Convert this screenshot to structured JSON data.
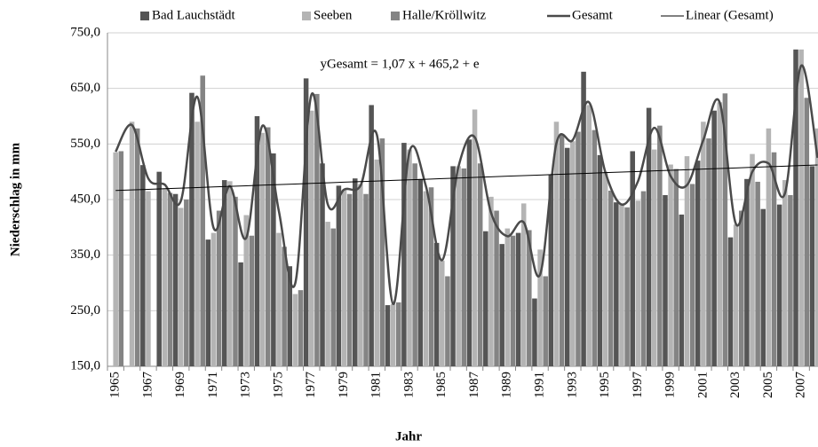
{
  "chart_data": {
    "type": "bar",
    "title_annotation": "yGesamt = 1,07 x + 465,2 + e",
    "x_label": "Jahr",
    "y_label": "Niederschlag in mm",
    "categories": [
      "1965",
      null,
      "1967",
      null,
      "1969",
      null,
      "1971",
      null,
      "1973",
      null,
      "1975",
      null,
      "1977",
      null,
      "1979",
      null,
      "1981",
      null,
      "1983",
      null,
      "1985",
      null,
      "1987",
      null,
      "1989",
      null,
      "1991",
      null,
      "1993",
      null,
      "1995",
      null,
      "1997",
      null,
      "1999",
      null,
      "2001",
      null,
      "2003",
      null,
      "2005",
      null,
      "2007",
      null
    ],
    "series": [
      {
        "name": "Bad Lauchstädt",
        "color": "#555555",
        "values": [
          null,
          null,
          512,
          500,
          460,
          642,
          378,
          485,
          337,
          600,
          533,
          330,
          668,
          515,
          475,
          488,
          620,
          260,
          552,
          487,
          372,
          510,
          558,
          393,
          370,
          390,
          272,
          495,
          543,
          680,
          530,
          445,
          537,
          615,
          458,
          423,
          520,
          610,
          382,
          487,
          433,
          441,
          720,
          510
        ]
      },
      {
        "name": "Seeben",
        "color": "#b4b4b4",
        "values": [
          535,
          590,
          465,
          470,
          435,
          590,
          390,
          483,
          422,
          570,
          390,
          280,
          610,
          410,
          468,
          478,
          522,
          262,
          540,
          465,
          340,
          510,
          612,
          455,
          398,
          443,
          360,
          590,
          555,
          620,
          500,
          443,
          448,
          540,
          513,
          528,
          590,
          625,
          405,
          532,
          578,
          485,
          720,
          578
        ]
      },
      {
        "name": "Halle/Kröllwitz",
        "color": "#848484",
        "values": [
          537,
          578,
          null,
          462,
          450,
          673,
          430,
          455,
          385,
          580,
          365,
          287,
          640,
          398,
          460,
          460,
          560,
          265,
          515,
          472,
          312,
          506,
          515,
          430,
          385,
          395,
          312,
          567,
          572,
          575,
          466,
          436,
          465,
          583,
          505,
          478,
          560,
          641,
          430,
          482,
          535,
          458,
          633,
          487
        ]
      },
      {
        "name": "Gesamt",
        "type": "line",
        "color": "#4a4a4a",
        "values": [
          536,
          584,
          488,
          477,
          448,
          635,
          399,
          474,
          381,
          583,
          429,
          299,
          639,
          441,
          468,
          475,
          567,
          262,
          536,
          475,
          341,
          509,
          562,
          426,
          384,
          409,
          315,
          551,
          557,
          625,
          499,
          441,
          483,
          579,
          492,
          476,
          557,
          625,
          406,
          500,
          515,
          461,
          691,
          525
        ]
      },
      {
        "name": "Linear (Gesamt)",
        "type": "line",
        "color": "#000000",
        "values": [
          466.3,
          467.3,
          468.4,
          469.5,
          470.6,
          471.6,
          472.7,
          473.8,
          474.8,
          475.9,
          477.0,
          478.0,
          479.1,
          480.2,
          481.3,
          482.3,
          483.4,
          484.5,
          485.5,
          486.6,
          487.7,
          488.7,
          489.8,
          490.9,
          492.0,
          493.0,
          494.1,
          495.2,
          496.2,
          497.3,
          498.4,
          499.4,
          500.5,
          501.6,
          502.7,
          503.7,
          504.8,
          505.9,
          506.9,
          508.0,
          509.1,
          510.1,
          511.2,
          512.3
        ]
      }
    ],
    "ylim": [
      150,
      750
    ],
    "yticks": [
      {
        "value": 150,
        "label": "150,0"
      },
      {
        "value": 250,
        "label": "250,0"
      },
      {
        "value": 350,
        "label": "350,0"
      },
      {
        "value": 450,
        "label": "450,0"
      },
      {
        "value": 550,
        "label": "550,0"
      },
      {
        "value": 650,
        "label": "650,0"
      },
      {
        "value": 750,
        "label": "750,0"
      }
    ],
    "grid": true,
    "legend": "top"
  }
}
